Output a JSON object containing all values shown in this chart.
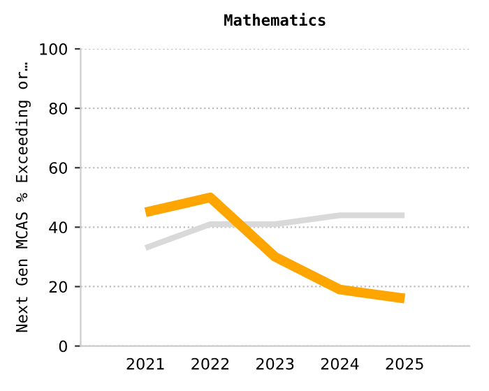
{
  "chart_data": {
    "type": "line",
    "title": "Mathematics",
    "ylabel": "Next Gen MCAS % Exceeding or…",
    "categories": [
      "2021",
      "2022",
      "2023",
      "2024",
      "2025"
    ],
    "series": [
      {
        "color": "#d9d9d9",
        "values": [
          33,
          41,
          41,
          44,
          44
        ]
      },
      {
        "color": "#ffa500",
        "values": [
          45,
          50,
          30,
          19,
          16
        ]
      }
    ],
    "ylim": [
      0,
      100
    ],
    "yticks": [
      0,
      20,
      40,
      60,
      80,
      100
    ],
    "grid": "y",
    "marker": "none",
    "line_style": "solid"
  }
}
